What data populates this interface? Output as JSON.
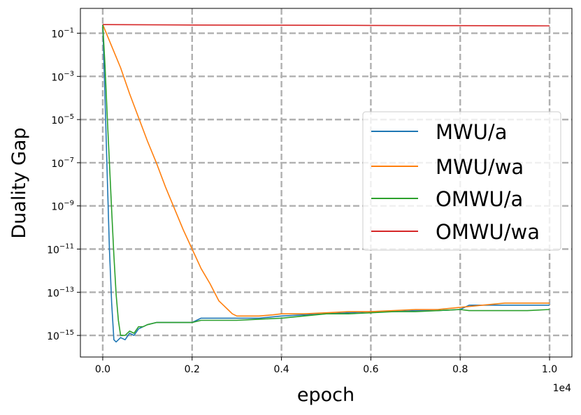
{
  "chart_data": {
    "type": "line",
    "title": "",
    "xlabel": "epoch",
    "ylabel": "Duality Gap",
    "x_offset_label": "1e4",
    "xlim": [
      -0.05,
      1.05
    ],
    "ylim_log10": [
      -16.0,
      0.15
    ],
    "y_scale": "log",
    "grid": true,
    "legend_position": "center-right",
    "x_ticks": [
      0.0,
      0.2,
      0.4,
      0.6,
      0.8,
      1.0
    ],
    "x_tick_labels": [
      "0.0",
      "0.2",
      "0.4",
      "0.6",
      "0.8",
      "1.0"
    ],
    "y_ticks_log10": [
      -1,
      -3,
      -5,
      -7,
      -9,
      -11,
      -13,
      -15
    ],
    "y_tick_labels": [
      {
        "base": "10",
        "exp": "−1"
      },
      {
        "base": "10",
        "exp": "−3"
      },
      {
        "base": "10",
        "exp": "−5"
      },
      {
        "base": "10",
        "exp": "−7"
      },
      {
        "base": "10",
        "exp": "−9"
      },
      {
        "base": "10",
        "exp": "−11"
      },
      {
        "base": "10",
        "exp": "−13"
      },
      {
        "base": "10",
        "exp": "−15"
      }
    ],
    "series": [
      {
        "name": "MWU/a",
        "color": "#1f77b4",
        "x": [
          0.0,
          0.005,
          0.01,
          0.015,
          0.02,
          0.025,
          0.03,
          0.04,
          0.05,
          0.06,
          0.07,
          0.08,
          0.09,
          0.1,
          0.12,
          0.15,
          0.2,
          0.22,
          0.25,
          0.3,
          0.35,
          0.4,
          0.45,
          0.5,
          0.55,
          0.6,
          0.65,
          0.7,
          0.75,
          0.8,
          0.82,
          0.85,
          0.9,
          0.95,
          1.0
        ],
        "y_log10": [
          -0.6,
          -4.0,
          -7.5,
          -11.0,
          -13.5,
          -15.2,
          -15.3,
          -15.1,
          -15.2,
          -14.9,
          -15.0,
          -14.7,
          -14.6,
          -14.5,
          -14.4,
          -14.4,
          -14.4,
          -14.2,
          -14.2,
          -14.2,
          -14.2,
          -14.1,
          -14.05,
          -14.0,
          -13.95,
          -13.9,
          -13.9,
          -13.85,
          -13.85,
          -13.8,
          -13.6,
          -13.6,
          -13.6,
          -13.6,
          -13.6
        ]
      },
      {
        "name": "MWU/wa",
        "color": "#ff7f0e",
        "x": [
          0.0,
          0.02,
          0.04,
          0.06,
          0.08,
          0.1,
          0.12,
          0.14,
          0.16,
          0.18,
          0.2,
          0.22,
          0.24,
          0.26,
          0.27,
          0.28,
          0.29,
          0.3,
          0.32,
          0.35,
          0.38,
          0.4,
          0.45,
          0.5,
          0.55,
          0.6,
          0.65,
          0.7,
          0.75,
          0.8,
          0.85,
          0.9,
          0.95,
          1.0
        ],
        "y_log10": [
          -0.6,
          -1.6,
          -2.6,
          -3.8,
          -4.9,
          -6.0,
          -7.0,
          -8.1,
          -9.1,
          -10.1,
          -11.0,
          -11.9,
          -12.6,
          -13.4,
          -13.6,
          -13.8,
          -14.0,
          -14.1,
          -14.1,
          -14.1,
          -14.05,
          -14.0,
          -14.0,
          -13.95,
          -13.9,
          -13.9,
          -13.85,
          -13.8,
          -13.8,
          -13.7,
          -13.6,
          -13.5,
          -13.5,
          -13.5
        ]
      },
      {
        "name": "OMWU/a",
        "color": "#2ca02c",
        "x": [
          0.0,
          0.005,
          0.01,
          0.015,
          0.02,
          0.025,
          0.03,
          0.035,
          0.04,
          0.045,
          0.05,
          0.06,
          0.07,
          0.08,
          0.09,
          0.1,
          0.12,
          0.15,
          0.2,
          0.22,
          0.25,
          0.3,
          0.35,
          0.4,
          0.45,
          0.5,
          0.55,
          0.6,
          0.65,
          0.7,
          0.75,
          0.8,
          0.82,
          0.85,
          0.9,
          0.95,
          1.0
        ],
        "y_log10": [
          -0.6,
          -2.5,
          -4.8,
          -7.0,
          -9.2,
          -11.3,
          -13.1,
          -14.3,
          -15.0,
          -15.0,
          -15.0,
          -14.8,
          -14.9,
          -14.6,
          -14.6,
          -14.5,
          -14.4,
          -14.4,
          -14.4,
          -14.3,
          -14.3,
          -14.3,
          -14.25,
          -14.2,
          -14.1,
          -14.0,
          -14.0,
          -13.95,
          -13.9,
          -13.9,
          -13.85,
          -13.8,
          -13.85,
          -13.85,
          -13.85,
          -13.85,
          -13.8
        ]
      },
      {
        "name": "OMWU/wa",
        "color": "#d62728",
        "x": [
          0.0,
          0.2,
          0.4,
          0.6,
          0.8,
          1.0
        ],
        "y_log10": [
          -0.6,
          -0.62,
          -0.63,
          -0.64,
          -0.65,
          -0.66
        ]
      }
    ]
  }
}
